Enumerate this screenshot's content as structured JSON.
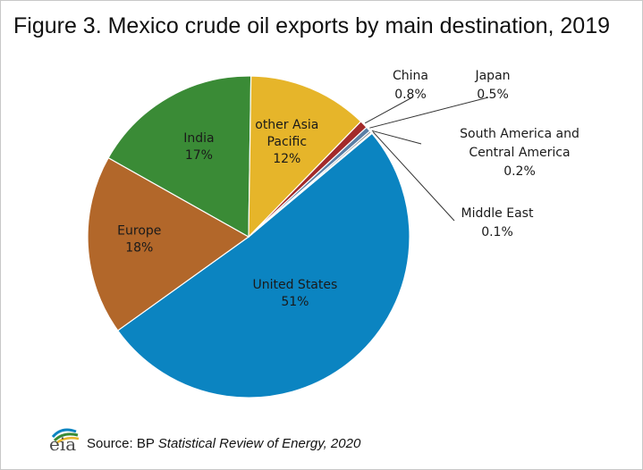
{
  "title": "Figure 3. Mexico crude oil exports by main destination, 2019",
  "source": {
    "logo_text": "eia",
    "prefix": "Source: BP ",
    "publication": "Statistical Review of Energy, 2020"
  },
  "colors": {
    "united_states": "#0b84c1",
    "europe": "#b2672a",
    "india": "#3a8b36",
    "other_asia_pacific": "#e6b52a",
    "china": "#a32a2a",
    "japan": "#5b7fa6",
    "south_central_america": "#8c8c8c",
    "middle_east": "#6a9b3e"
  },
  "chart_data": {
    "type": "pie",
    "title": "Figure 3. Mexico crude oil exports by main destination, 2019",
    "slices": [
      {
        "label": "United States",
        "value": 51,
        "display": "51%"
      },
      {
        "label": "Europe",
        "value": 18,
        "display": "18%"
      },
      {
        "label": "India",
        "value": 17,
        "display": "17%"
      },
      {
        "label": "other Asia Pacific",
        "value": 12,
        "display": "12%"
      },
      {
        "label": "China",
        "value": 0.8,
        "display": "0.8%"
      },
      {
        "label": "Japan",
        "value": 0.5,
        "display": "0.5%"
      },
      {
        "label": "South America and Central America",
        "value": 0.2,
        "display": "0.2%"
      },
      {
        "label": "Middle East",
        "value": 0.1,
        "display": "0.1%"
      }
    ]
  }
}
